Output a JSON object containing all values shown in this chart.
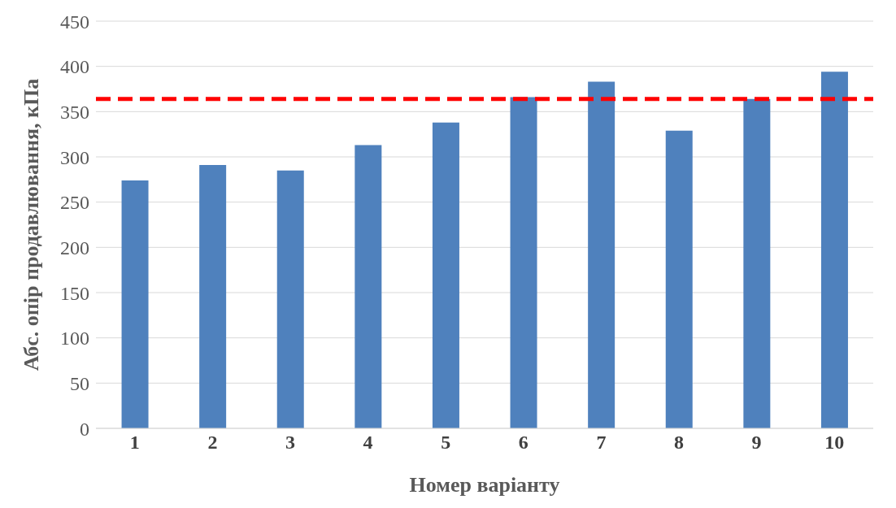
{
  "chart_data": {
    "type": "bar",
    "xlabel": "Номер варіанту",
    "ylabel": "Абс. опір продавлювання, кПа",
    "categories": [
      "1",
      "2",
      "3",
      "4",
      "5",
      "6",
      "7",
      "8",
      "9",
      "10"
    ],
    "values": [
      274,
      291,
      285,
      313,
      338,
      366,
      383,
      329,
      364,
      394
    ],
    "color": "#4f81bd",
    "ylim": [
      0,
      450
    ],
    "yticks": [
      0,
      50,
      100,
      150,
      200,
      250,
      300,
      350,
      400,
      450
    ],
    "grid": "y",
    "ref_lines": [
      {
        "axis": "y",
        "value": 364,
        "color": "#ff0000",
        "line_style": "dashed"
      }
    ]
  }
}
